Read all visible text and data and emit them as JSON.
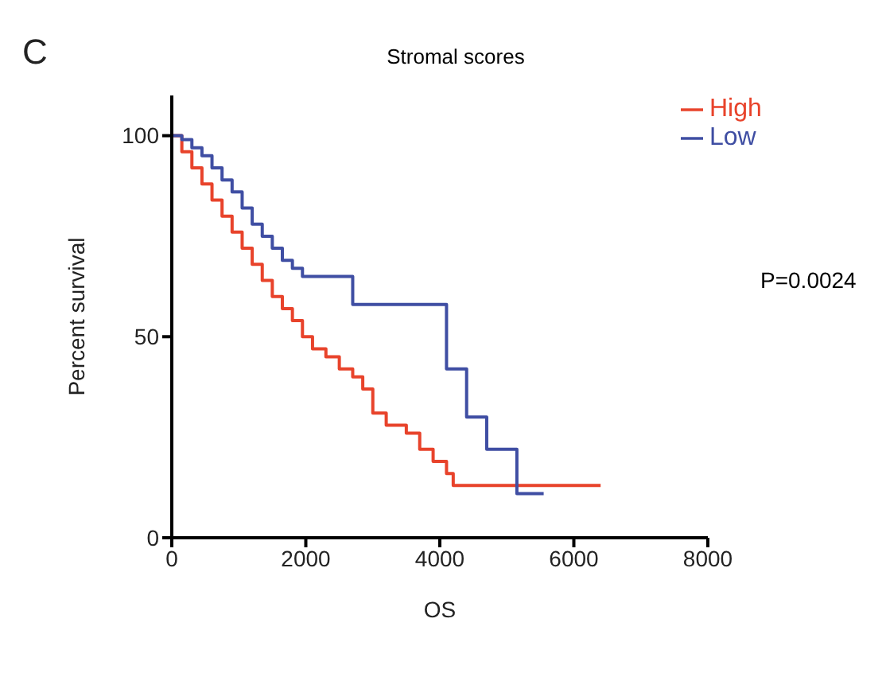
{
  "chart_data": {
    "type": "step",
    "title": "Stromal scores",
    "xlabel": "OS",
    "ylabel": "Percent survival",
    "xlim": [
      0,
      8000
    ],
    "xticks": [
      0,
      2000,
      4000,
      6000,
      8000
    ],
    "ylim": [
      0,
      110
    ],
    "yticks": [
      0,
      50,
      100
    ],
    "legend": "top right",
    "marker": "none",
    "line_style": "solid",
    "grid": false,
    "annotations": [
      "C",
      "P=0.0024"
    ],
    "series": [
      {
        "name": "High",
        "color": "#e8432b",
        "x": [
          0,
          150,
          300,
          450,
          600,
          750,
          900,
          1050,
          1200,
          1350,
          1500,
          1650,
          1800,
          1950,
          2100,
          2300,
          2500,
          2700,
          2850,
          3000,
          3200,
          3500,
          3700,
          3900,
          4100,
          4200,
          6400
        ],
        "values": [
          100,
          96,
          92,
          88,
          84,
          80,
          76,
          72,
          68,
          64,
          60,
          57,
          54,
          50,
          47,
          45,
          42,
          40,
          37,
          31,
          28,
          26,
          22,
          19,
          16,
          13,
          13
        ]
      },
      {
        "name": "Low",
        "color": "#3f4ea3",
        "x": [
          0,
          150,
          300,
          450,
          600,
          750,
          900,
          1050,
          1200,
          1350,
          1500,
          1650,
          1800,
          1950,
          2700,
          4050,
          4100,
          4400,
          4700,
          5150,
          5550
        ],
        "values": [
          100,
          99,
          97,
          95,
          92,
          89,
          86,
          82,
          78,
          75,
          72,
          69,
          67,
          65,
          58,
          58,
          42,
          30,
          22,
          11,
          11
        ]
      }
    ]
  }
}
